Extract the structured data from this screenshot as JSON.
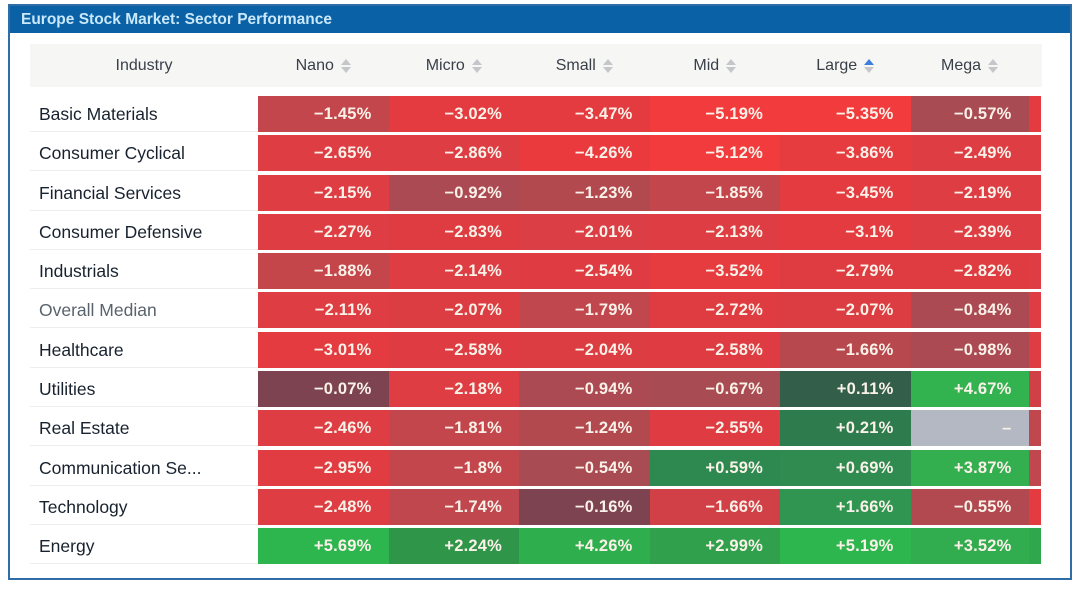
{
  "frame": {
    "border_color": "#2E6DA6"
  },
  "title_bar": {
    "text": "Europe Stock Market: Sector Performance",
    "bg": "#0A61A5",
    "text_color": "#C9E8FA"
  },
  "table": {
    "industry_header": "Industry",
    "sort_active_color": "#3D7EDB",
    "sort_inactive_color": "#C4C6C9",
    "header_bg": "#F6F6F4",
    "missing_value_bg": "#B3B8C2",
    "columns": [
      {
        "label": "Nano",
        "sort": "none"
      },
      {
        "label": "Micro",
        "sort": "none"
      },
      {
        "label": "Small",
        "sort": "none"
      },
      {
        "label": "Mid",
        "sort": "none"
      },
      {
        "label": "Large",
        "sort": "asc"
      },
      {
        "label": "Mega",
        "sort": "none"
      }
    ],
    "rows": [
      {
        "label": "Basic Materials",
        "muted": false,
        "clipped_cell_bg": "#E43B40",
        "cells": [
          {
            "v": "−1.45%",
            "bg": "#C2464C"
          },
          {
            "v": "−3.02%",
            "bg": "#E43B40"
          },
          {
            "v": "−3.47%",
            "bg": "#E43B40"
          },
          {
            "v": "−5.19%",
            "bg": "#F23B3C"
          },
          {
            "v": "−5.35%",
            "bg": "#F23B3C"
          },
          {
            "v": "−0.57%",
            "bg": "#A94B52"
          }
        ]
      },
      {
        "label": "Consumer Cyclical",
        "muted": false,
        "clipped_cell_bg": "#DD3D43",
        "cells": [
          {
            "v": "−2.65%",
            "bg": "#DD3D43"
          },
          {
            "v": "−2.86%",
            "bg": "#DD3D43"
          },
          {
            "v": "−4.26%",
            "bg": "#EA3A3E"
          },
          {
            "v": "−5.12%",
            "bg": "#F23B3C"
          },
          {
            "v": "−3.86%",
            "bg": "#E63B3F"
          },
          {
            "v": "−2.49%",
            "bg": "#DD3D43"
          }
        ]
      },
      {
        "label": "Financial Services",
        "muted": false,
        "clipped_cell_bg": "#DD3D43",
        "cells": [
          {
            "v": "−2.15%",
            "bg": "#DD3D43"
          },
          {
            "v": "−0.92%",
            "bg": "#AB4A52"
          },
          {
            "v": "−1.23%",
            "bg": "#B2494F"
          },
          {
            "v": "−1.85%",
            "bg": "#C2464C"
          },
          {
            "v": "−3.45%",
            "bg": "#E43B40"
          },
          {
            "v": "−2.19%",
            "bg": "#DD3D43"
          }
        ]
      },
      {
        "label": "Consumer Defensive",
        "muted": false,
        "clipped_cell_bg": "#DD3D43",
        "cells": [
          {
            "v": "−2.27%",
            "bg": "#DD3D43"
          },
          {
            "v": "−2.83%",
            "bg": "#DF3C42"
          },
          {
            "v": "−2.01%",
            "bg": "#DB3E44"
          },
          {
            "v": "−2.13%",
            "bg": "#DD3D43"
          },
          {
            "v": "−3.1%",
            "bg": "#E43B40"
          },
          {
            "v": "−2.39%",
            "bg": "#DD3D43"
          }
        ]
      },
      {
        "label": "Industrials",
        "muted": false,
        "clipped_cell_bg": "#DD3D43",
        "cells": [
          {
            "v": "−1.88%",
            "bg": "#C4464B"
          },
          {
            "v": "−2.14%",
            "bg": "#DD3D43"
          },
          {
            "v": "−2.54%",
            "bg": "#DE3C42"
          },
          {
            "v": "−3.52%",
            "bg": "#E63B3F"
          },
          {
            "v": "−2.79%",
            "bg": "#DF3C42"
          },
          {
            "v": "−2.82%",
            "bg": "#DF3C42"
          }
        ]
      },
      {
        "label": "Overall Median",
        "muted": true,
        "clipped_cell_bg": "#DD3D43",
        "cells": [
          {
            "v": "−2.11%",
            "bg": "#DD3D43"
          },
          {
            "v": "−2.07%",
            "bg": "#DC3D43"
          },
          {
            "v": "−1.79%",
            "bg": "#C0474D"
          },
          {
            "v": "−2.72%",
            "bg": "#DF3C42"
          },
          {
            "v": "−2.07%",
            "bg": "#DC3D43"
          },
          {
            "v": "−0.84%",
            "bg": "#AB4A52"
          }
        ]
      },
      {
        "label": "Healthcare",
        "muted": false,
        "clipped_cell_bg": "#DD3D43",
        "cells": [
          {
            "v": "−3.01%",
            "bg": "#E43B40"
          },
          {
            "v": "−2.58%",
            "bg": "#DE3C42"
          },
          {
            "v": "−2.04%",
            "bg": "#DC3D43"
          },
          {
            "v": "−2.58%",
            "bg": "#DE3C42"
          },
          {
            "v": "−1.66%",
            "bg": "#B6484E"
          },
          {
            "v": "−0.98%",
            "bg": "#AB4A52"
          }
        ]
      },
      {
        "label": "Utilities",
        "muted": false,
        "clipped_cell_bg": "#D04046",
        "cells": [
          {
            "v": "−0.07%",
            "bg": "#7D4350"
          },
          {
            "v": "−2.18%",
            "bg": "#DD3D43"
          },
          {
            "v": "−0.94%",
            "bg": "#AB4A52"
          },
          {
            "v": "−0.67%",
            "bg": "#A94B52"
          },
          {
            "v": "+0.11%",
            "bg": "#335F4A"
          },
          {
            "v": "+4.67%",
            "bg": "#32B34F"
          }
        ]
      },
      {
        "label": "Real Estate",
        "muted": false,
        "clipped_cell_bg": "#C0474D",
        "cells": [
          {
            "v": "−2.46%",
            "bg": "#DD3D43"
          },
          {
            "v": "−1.81%",
            "bg": "#C2464C"
          },
          {
            "v": "−1.24%",
            "bg": "#B2494F"
          },
          {
            "v": "−2.55%",
            "bg": "#DE3C42"
          },
          {
            "v": "+0.21%",
            "bg": "#2E7C4E"
          },
          {
            "v": "–",
            "bg": "#B3B8C2"
          }
        ]
      },
      {
        "label": "Communication Se...",
        "muted": false,
        "clipped_cell_bg": "#C0474D",
        "cells": [
          {
            "v": "−2.95%",
            "bg": "#E03C41"
          },
          {
            "v": "−1.8%",
            "bg": "#C2464C"
          },
          {
            "v": "−0.54%",
            "bg": "#A94B52"
          },
          {
            "v": "+0.59%",
            "bg": "#2E8950"
          },
          {
            "v": "+0.69%",
            "bg": "#2F8B50"
          },
          {
            "v": "+3.87%",
            "bg": "#33AF4F"
          }
        ]
      },
      {
        "label": "Technology",
        "muted": false,
        "clipped_cell_bg": "#E43B40",
        "cells": [
          {
            "v": "−2.48%",
            "bg": "#DD3D43"
          },
          {
            "v": "−1.74%",
            "bg": "#C0474D"
          },
          {
            "v": "−0.16%",
            "bg": "#7D4350"
          },
          {
            "v": "−1.66%",
            "bg": "#D04046"
          },
          {
            "v": "+1.66%",
            "bg": "#2F9551"
          },
          {
            "v": "−0.55%",
            "bg": "#B24950"
          }
        ]
      },
      {
        "label": "Energy",
        "muted": false,
        "clipped_cell_bg": "#2FA84D",
        "cells": [
          {
            "v": "+5.69%",
            "bg": "#2DB54E"
          },
          {
            "v": "+2.24%",
            "bg": "#2F9549"
          },
          {
            "v": "+4.26%",
            "bg": "#2FAE4D"
          },
          {
            "v": "+2.99%",
            "bg": "#31A04C"
          },
          {
            "v": "+5.19%",
            "bg": "#2DB54E"
          },
          {
            "v": "+3.52%",
            "bg": "#31AC4E"
          }
        ]
      }
    ]
  }
}
